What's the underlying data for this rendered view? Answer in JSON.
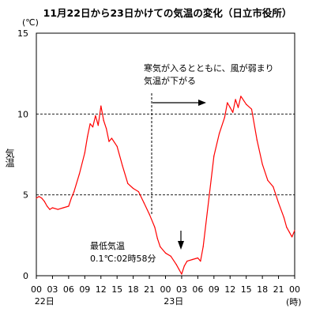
{
  "chart_data": {
    "type": "line",
    "title": "11月22日から23日かけての気温の変化（日立市役所）",
    "ylabel": "気温",
    "y_unit": "(℃)",
    "ylim": [
      0,
      15
    ],
    "y_ticks": [
      0,
      5,
      10,
      15
    ],
    "grid": "dashed horizontal lines at 5 and 10",
    "x_unit": "(時)",
    "xlim": [
      0,
      48
    ],
    "x_ticks": [
      {
        "hour": 0,
        "label": "00"
      },
      {
        "hour": 3,
        "label": "03"
      },
      {
        "hour": 6,
        "label": "06"
      },
      {
        "hour": 9,
        "label": "09"
      },
      {
        "hour": 12,
        "label": "12"
      },
      {
        "hour": 15,
        "label": "15"
      },
      {
        "hour": 18,
        "label": "18"
      },
      {
        "hour": 21,
        "label": "21"
      },
      {
        "hour": 24,
        "label": "00"
      },
      {
        "hour": 27,
        "label": "03"
      },
      {
        "hour": 30,
        "label": "06"
      },
      {
        "hour": 33,
        "label": "09"
      },
      {
        "hour": 36,
        "label": "12"
      },
      {
        "hour": 39,
        "label": "15"
      },
      {
        "hour": 42,
        "label": "18"
      },
      {
        "hour": 45,
        "label": "21"
      },
      {
        "hour": 48,
        "label": "00"
      }
    ],
    "day_labels": [
      {
        "hour": 1.5,
        "label": "22日"
      },
      {
        "hour": 25.5,
        "label": "23日"
      }
    ],
    "series": [
      {
        "color": "#ff0000",
        "x": [
          0,
          0.5,
          1,
          1.5,
          2,
          2.5,
          3,
          4,
          5,
          6,
          6.5,
          7,
          8,
          9,
          9.5,
          10,
          10.5,
          11,
          11.5,
          12,
          12.5,
          13,
          13.5,
          14,
          15,
          16,
          17,
          18,
          19,
          20,
          21,
          22,
          22.5,
          23,
          24,
          25,
          26,
          26.5,
          27,
          27.5,
          28,
          29,
          30,
          30.5,
          31,
          32,
          33,
          34,
          35,
          35.5,
          36,
          36.5,
          37,
          37.5,
          38,
          39,
          40,
          41,
          42,
          43,
          44,
          45,
          46,
          46.5,
          47,
          47.5,
          48
        ],
        "y": [
          4.8,
          4.9,
          4.8,
          4.6,
          4.3,
          4.1,
          4.2,
          4.1,
          4.2,
          4.3,
          4.8,
          5.2,
          6.3,
          7.6,
          8.6,
          9.4,
          9.2,
          9.9,
          9.3,
          10.5,
          9.6,
          9.1,
          8.3,
          8.5,
          8.0,
          6.8,
          5.7,
          5.4,
          5.2,
          4.5,
          3.8,
          3.0,
          2.3,
          1.8,
          1.4,
          1.2,
          0.7,
          0.4,
          0.1,
          0.6,
          0.9,
          1.0,
          1.1,
          0.9,
          1.8,
          4.6,
          7.4,
          8.8,
          9.8,
          10.7,
          10.4,
          10.1,
          10.9,
          10.4,
          11.1,
          10.6,
          10.3,
          8.4,
          6.9,
          5.9,
          5.5,
          4.5,
          3.6,
          3.0,
          2.7,
          2.4,
          2.8
        ]
      }
    ],
    "annotations": [
      {
        "text_lines": [
          "寒気が入るとともに、風が弱まり",
          "気温が下がる"
        ],
        "arrow": "right"
      },
      {
        "text_lines": [
          "最低気温",
          "0.1℃:02時58分"
        ],
        "arrow": "down"
      }
    ]
  }
}
